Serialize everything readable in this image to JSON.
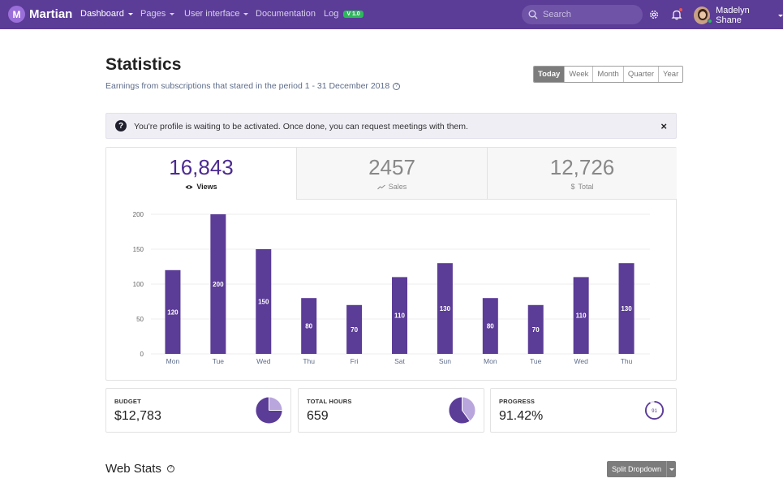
{
  "navbar": {
    "brand_mark": "M",
    "brand_name": "Martian",
    "items": [
      {
        "label": "Dashboard",
        "active": true,
        "dropdown": true
      },
      {
        "label": "Pages",
        "dropdown": true
      },
      {
        "label": "User interface",
        "dropdown": true
      },
      {
        "label": "Documentation",
        "dropdown": false
      },
      {
        "label": "Log",
        "dropdown": false,
        "badge": "V 1.0"
      }
    ],
    "search_placeholder": "Search",
    "user_name": "Madelyn Shane"
  },
  "header": {
    "title": "Statistics",
    "subtitle": "Earnings from subscriptions that stared in the period 1 - 31 December 2018",
    "periods": [
      "Today",
      "Week",
      "Month",
      "Quarter",
      "Year"
    ],
    "active_period": "Today"
  },
  "alert": {
    "text": "You're profile is waiting to be activated. Once done, you can request meetings with them.",
    "icon": "question-circle-icon",
    "close": "×"
  },
  "tabs": [
    {
      "value": "16,843",
      "label": "Views",
      "icon": "eye-icon",
      "active": true
    },
    {
      "value": "2457",
      "label": "Sales",
      "icon": "trend-icon",
      "active": false
    },
    {
      "value": "12,726",
      "label": "Total",
      "icon": "dollar-icon",
      "active": false
    }
  ],
  "chart_data": {
    "type": "bar",
    "categories": [
      "Mon",
      "Tue",
      "Wed",
      "Thu",
      "Fri",
      "Sat",
      "Sun",
      "Mon",
      "Tue",
      "Wed",
      "Thu"
    ],
    "values": [
      120,
      200,
      150,
      80,
      70,
      110,
      130,
      80,
      70,
      110,
      130
    ],
    "ylim": [
      0,
      200
    ],
    "yticks": [
      0,
      50,
      100,
      150,
      200
    ],
    "grid": true,
    "bar_color": "#5b3c97",
    "title": "",
    "xlabel": "",
    "ylabel": ""
  },
  "stats": [
    {
      "label": "BUDGET",
      "value": "$12,783",
      "graphic": "pie",
      "fraction": 0.75
    },
    {
      "label": "TOTAL HOURS",
      "value": "659",
      "graphic": "pie",
      "fraction": 0.6
    },
    {
      "label": "PROGRESS",
      "value": "91.42%",
      "graphic": "ring",
      "ring_label": "91",
      "fraction": 0.9142
    }
  ],
  "web_stats": {
    "title": "Web Stats",
    "button": "Split Dropdown"
  },
  "colors": {
    "navbar": "#5b3c97",
    "accent": "#5b3c97",
    "success": "#2eb85c"
  }
}
